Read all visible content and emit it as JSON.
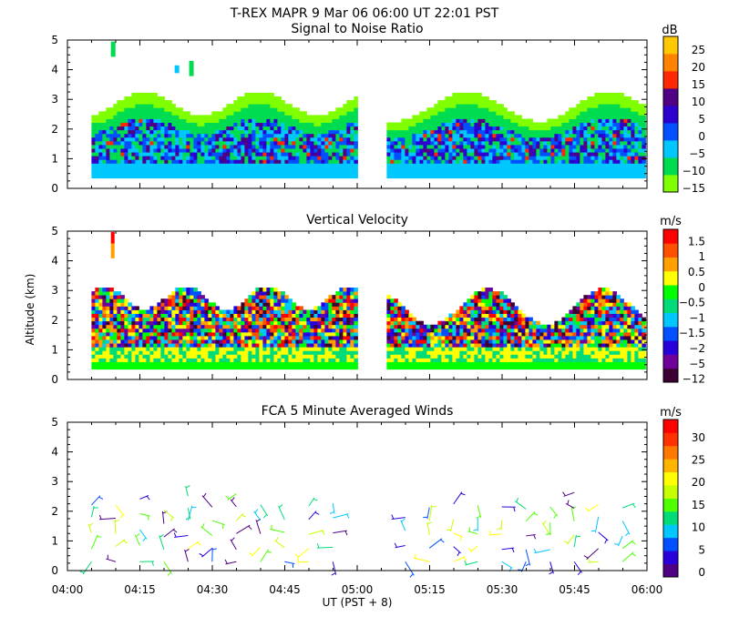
{
  "header": {
    "title": "T-REX   MAPR   9 Mar 06   06:00 UT   22:01   PST"
  },
  "axis": {
    "x_ticks": [
      "04:00",
      "04:15",
      "04:30",
      "04:45",
      "05:00",
      "05:15",
      "05:30",
      "05:45",
      "06:00"
    ],
    "x_label": "UT  (PST + 8)",
    "y_label": "Altitude (km)",
    "y_ticks": [
      "0",
      "1",
      "2",
      "3",
      "4",
      "5"
    ]
  },
  "colors": {
    "snr_scale": [
      "#80ff00",
      "#00dc50",
      "#00c8ff",
      "#0050ff",
      "#2d00d2",
      "#500082",
      "#ff2800",
      "#ff8200",
      "#ffc800"
    ],
    "vel_scale": [
      "#3c0032",
      "#6e009b",
      "#2800dc",
      "#0050ff",
      "#00c8ff",
      "#00dc78",
      "#00ff00",
      "#ffff00",
      "#ffa000",
      "#ff5000",
      "#ff0000"
    ],
    "wind_scale": [
      "#500082",
      "#2800dc",
      "#0050ff",
      "#00c8ff",
      "#00dc78",
      "#50ff00",
      "#c8ff00",
      "#ffff00",
      "#ffb400",
      "#ff7800",
      "#ff3200",
      "#ff0000"
    ]
  },
  "chart_data": [
    {
      "type": "heatmap",
      "title": "Signal to Noise Ratio",
      "xlabel": "UT  (PST + 8)",
      "ylabel": "Altitude (km)",
      "x_range": [
        4.0,
        6.0
      ],
      "ylim": [
        0,
        5
      ],
      "data_gap_hours": [
        4.99,
        5.09
      ],
      "colorbar": {
        "unit": "dB",
        "labels": [
          "25",
          "20",
          "15",
          "10",
          "5",
          "0",
          "−5",
          "−10",
          "−15"
        ],
        "values": [
          -15,
          -10,
          -5,
          0,
          5,
          10,
          15,
          20,
          25
        ]
      }
    },
    {
      "type": "heatmap",
      "title": "Vertical Velocity",
      "xlabel": "UT  (PST + 8)",
      "ylabel": "Altitude (km)",
      "x_range": [
        4.0,
        6.0
      ],
      "ylim": [
        0,
        5
      ],
      "data_gap_hours": [
        4.99,
        5.09
      ],
      "colorbar": {
        "unit": "m/s",
        "labels": [
          "1.5",
          "1",
          "0.5",
          "0",
          "−0.5",
          "−1",
          "−1.5",
          "−2",
          "−5",
          "−12"
        ],
        "values": [
          -12,
          -5,
          -2,
          -1.5,
          -1,
          -0.5,
          0,
          0.5,
          1,
          1.5
        ]
      }
    },
    {
      "type": "scatter",
      "title": "FCA 5 Minute Averaged Winds",
      "xlabel": "UT  (PST + 8)",
      "ylabel": "Altitude (km)",
      "x_range": [
        4.0,
        6.0
      ],
      "ylim": [
        0,
        5
      ],
      "colorbar": {
        "unit": "m/s",
        "labels": [
          "30",
          "25",
          "20",
          "15",
          "10",
          "5",
          "0"
        ],
        "values": [
          0,
          5,
          10,
          15,
          20,
          25,
          30
        ]
      }
    }
  ]
}
